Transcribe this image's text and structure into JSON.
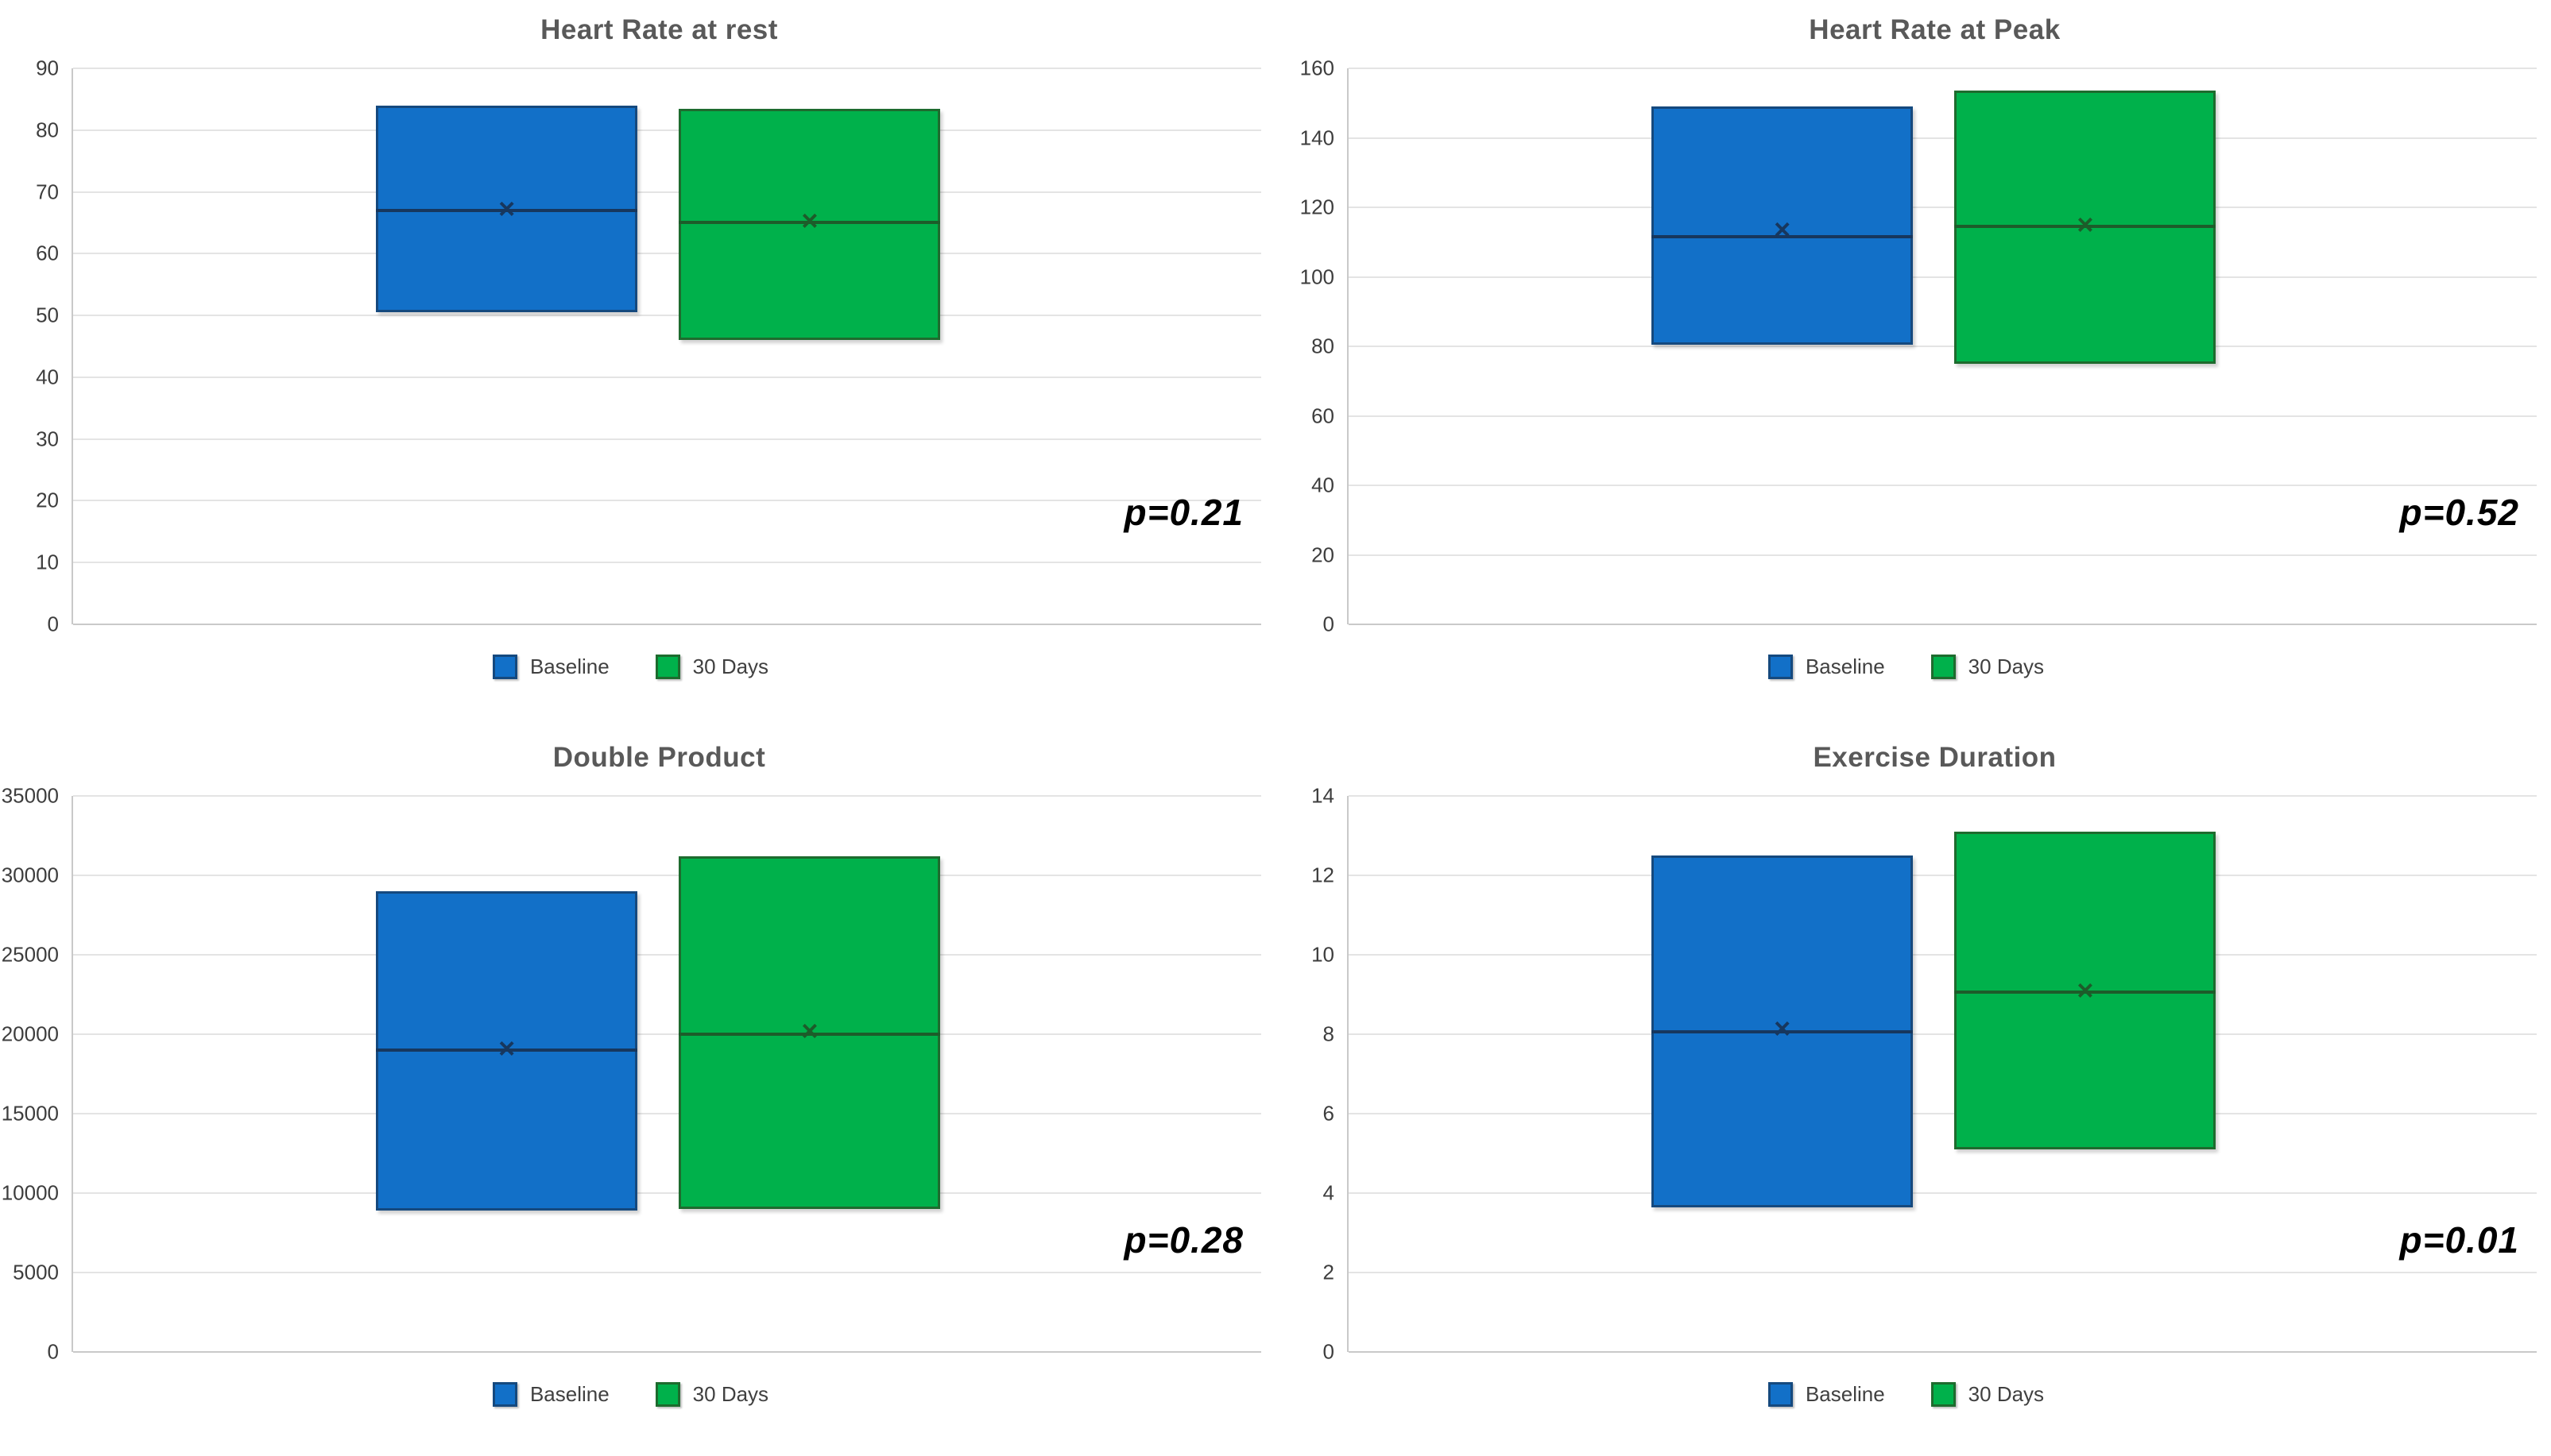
{
  "colors": {
    "baseline_fill": "#1270C8",
    "baseline_edge": "#15497E",
    "baseline_median": "#17375E",
    "days30_fill": "#00B14B",
    "days30_edge": "#1E6B2E",
    "days30_median": "#1D5C2A",
    "grid_color": "#E4E4E4",
    "axis_color": "#C9C9C9",
    "title_color": "#595959",
    "tick_color": "#3D3D3D",
    "legend_text": "#404040",
    "p_color": "#000000",
    "page_bg": "#FFFFFF"
  },
  "glyphs": {
    "mean_marker": "×"
  },
  "chart_data": [
    {
      "type": "box",
      "title": "Heart Rate at rest",
      "p_label": "p=0.21",
      "y_axis": {
        "min": 0,
        "max": 90,
        "step": 10
      },
      "grid": true,
      "legend_position": "bottom",
      "series": [
        {
          "name": "Baseline",
          "q1": 50.5,
          "q3": 84,
          "median": 67,
          "mean": 67.3
        },
        {
          "name": "30 Days",
          "q1": 46,
          "q3": 83.5,
          "median": 65,
          "mean": 65.3
        }
      ]
    },
    {
      "type": "box",
      "title": "Heart Rate at Peak",
      "p_label": "p=0.52",
      "y_axis": {
        "min": 0,
        "max": 160,
        "step": 20
      },
      "grid": true,
      "legend_position": "bottom",
      "series": [
        {
          "name": "Baseline",
          "q1": 80.5,
          "q3": 149,
          "median": 111.5,
          "mean": 113.5
        },
        {
          "name": "30 Days",
          "q1": 75,
          "q3": 153.5,
          "median": 114.5,
          "mean": 115
        }
      ]
    },
    {
      "type": "box",
      "title": "Double Product",
      "p_label": "p=0.28",
      "y_axis": {
        "min": 0,
        "max": 35000,
        "step": 5000
      },
      "grid": true,
      "legend_position": "bottom",
      "series": [
        {
          "name": "Baseline",
          "q1": 8900,
          "q3": 29000,
          "median": 19000,
          "mean": 19100
        },
        {
          "name": "30 Days",
          "q1": 9000,
          "q3": 31200,
          "median": 20000,
          "mean": 20200
        }
      ]
    },
    {
      "type": "box",
      "title": "Exercise Duration",
      "p_label": "p=0.01",
      "y_axis": {
        "min": 0,
        "max": 14,
        "step": 2
      },
      "grid": true,
      "legend_position": "bottom",
      "series": [
        {
          "name": "Baseline",
          "q1": 3.65,
          "q3": 12.5,
          "median": 8.05,
          "mean": 8.15
        },
        {
          "name": "30 Days",
          "q1": 5.1,
          "q3": 13.1,
          "median": 9.05,
          "mean": 9.1
        }
      ]
    }
  ]
}
